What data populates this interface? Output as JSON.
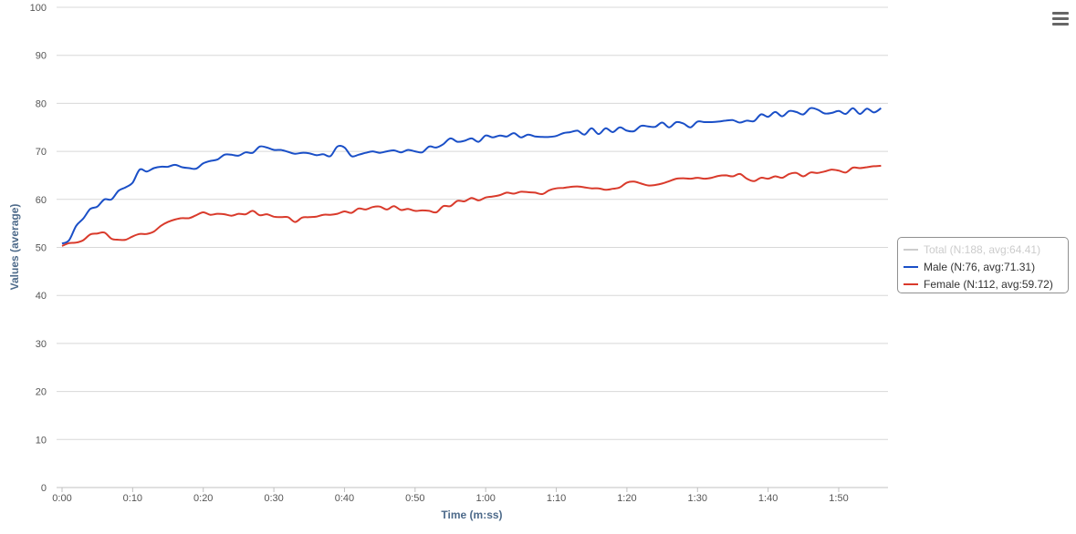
{
  "chart_data": {
    "type": "line",
    "xlabel": "Time (m:ss)",
    "ylabel": "Values (average)",
    "ylim": [
      0,
      100
    ],
    "yticks": [
      0,
      10,
      20,
      30,
      40,
      50,
      60,
      70,
      80,
      90,
      100
    ],
    "xlim": [
      0,
      118
    ],
    "xticks": [
      {
        "value": 0,
        "label": "0:00"
      },
      {
        "value": 10,
        "label": "0:10"
      },
      {
        "value": 20,
        "label": "0:20"
      },
      {
        "value": 30,
        "label": "0:30"
      },
      {
        "value": 40,
        "label": "0:40"
      },
      {
        "value": 50,
        "label": "0:50"
      },
      {
        "value": 60,
        "label": "1:00"
      },
      {
        "value": 70,
        "label": "1:10"
      },
      {
        "value": 80,
        "label": "1:20"
      },
      {
        "value": 90,
        "label": "1:30"
      },
      {
        "value": 100,
        "label": "1:40"
      },
      {
        "value": 110,
        "label": "1:50"
      }
    ],
    "grid": true,
    "legend_position": "right",
    "series": [
      {
        "name": "Total (N:188, avg:64.41)",
        "color": "#cccccc",
        "visible": false,
        "points": []
      },
      {
        "name": "Male (N:76, avg:71.31)",
        "color": "#1a4fc7",
        "visible": true,
        "points": [
          [
            0,
            50.8
          ],
          [
            1,
            51.5
          ],
          [
            2,
            54.5
          ],
          [
            3,
            56
          ],
          [
            4,
            58
          ],
          [
            5,
            58.5
          ],
          [
            6,
            60
          ],
          [
            7,
            60
          ],
          [
            8,
            61.8
          ],
          [
            9,
            62.5
          ],
          [
            10,
            63.5
          ],
          [
            11,
            66.2
          ],
          [
            12,
            65.8
          ],
          [
            13,
            66.5
          ],
          [
            14,
            66.8
          ],
          [
            15,
            66.8
          ],
          [
            16,
            67.2
          ],
          [
            17,
            66.7
          ],
          [
            18,
            66.5
          ],
          [
            19,
            66.4
          ],
          [
            20,
            67.5
          ],
          [
            21,
            68
          ],
          [
            22,
            68.3
          ],
          [
            23,
            69.3
          ],
          [
            24,
            69.3
          ],
          [
            25,
            69.1
          ],
          [
            26,
            69.8
          ],
          [
            27,
            69.7
          ],
          [
            28,
            71
          ],
          [
            29,
            70.8
          ],
          [
            30,
            70.3
          ],
          [
            31,
            70.3
          ],
          [
            32,
            69.9
          ],
          [
            33,
            69.5
          ],
          [
            34,
            69.7
          ],
          [
            35,
            69.6
          ],
          [
            36,
            69.2
          ],
          [
            37,
            69.4
          ],
          [
            38,
            69
          ],
          [
            39,
            71
          ],
          [
            40,
            70.8
          ],
          [
            41,
            69
          ],
          [
            42,
            69.3
          ],
          [
            43,
            69.7
          ],
          [
            44,
            70
          ],
          [
            45,
            69.7
          ],
          [
            46,
            70
          ],
          [
            47,
            70.2
          ],
          [
            48,
            69.8
          ],
          [
            49,
            70.3
          ],
          [
            50,
            70
          ],
          [
            51,
            69.8
          ],
          [
            52,
            71
          ],
          [
            53,
            70.8
          ],
          [
            54,
            71.5
          ],
          [
            55,
            72.7
          ],
          [
            56,
            72
          ],
          [
            57,
            72.2
          ],
          [
            58,
            72.7
          ],
          [
            59,
            72
          ],
          [
            60,
            73.3
          ],
          [
            61,
            72.9
          ],
          [
            62,
            73.3
          ],
          [
            63,
            73.1
          ],
          [
            64,
            73.8
          ],
          [
            65,
            72.9
          ],
          [
            66,
            73.5
          ],
          [
            67,
            73.1
          ],
          [
            68,
            73
          ],
          [
            69,
            73
          ],
          [
            70,
            73.2
          ],
          [
            71,
            73.8
          ],
          [
            72,
            74
          ],
          [
            73,
            74.3
          ],
          [
            74,
            73.5
          ],
          [
            75,
            74.8
          ],
          [
            76,
            73.6
          ],
          [
            77,
            74.8
          ],
          [
            78,
            74
          ],
          [
            79,
            75
          ],
          [
            80,
            74.3
          ],
          [
            81,
            74.2
          ],
          [
            82,
            75.3
          ],
          [
            83,
            75.2
          ],
          [
            84,
            75.1
          ],
          [
            85,
            76
          ],
          [
            86,
            75
          ],
          [
            87,
            76.1
          ],
          [
            88,
            75.8
          ],
          [
            89,
            75
          ],
          [
            90,
            76.2
          ],
          [
            91,
            76.1
          ],
          [
            92,
            76.1
          ],
          [
            93,
            76.2
          ],
          [
            94,
            76.4
          ],
          [
            95,
            76.5
          ],
          [
            96,
            76
          ],
          [
            97,
            76.4
          ],
          [
            98,
            76.3
          ],
          [
            99,
            77.7
          ],
          [
            100,
            77.2
          ],
          [
            101,
            78.2
          ],
          [
            102,
            77.3
          ],
          [
            103,
            78.4
          ],
          [
            104,
            78.2
          ],
          [
            105,
            77.7
          ],
          [
            106,
            79
          ],
          [
            107,
            78.7
          ],
          [
            108,
            77.9
          ],
          [
            109,
            78
          ],
          [
            110,
            78.4
          ],
          [
            111,
            77.8
          ],
          [
            112,
            79
          ],
          [
            113,
            77.8
          ],
          [
            114,
            78.9
          ],
          [
            115,
            78.1
          ],
          [
            116,
            79
          ]
        ]
      },
      {
        "name": "Female (N:112, avg:59.72)",
        "color": "#d93a2b",
        "visible": true,
        "points": [
          [
            0,
            50.3
          ],
          [
            1,
            50.9
          ],
          [
            2,
            51
          ],
          [
            3,
            51.5
          ],
          [
            4,
            52.7
          ],
          [
            5,
            52.9
          ],
          [
            6,
            53.1
          ],
          [
            7,
            51.8
          ],
          [
            8,
            51.6
          ],
          [
            9,
            51.6
          ],
          [
            10,
            52.3
          ],
          [
            11,
            52.8
          ],
          [
            12,
            52.8
          ],
          [
            13,
            53.3
          ],
          [
            14,
            54.5
          ],
          [
            15,
            55.3
          ],
          [
            16,
            55.8
          ],
          [
            17,
            56.1
          ],
          [
            18,
            56.1
          ],
          [
            19,
            56.7
          ],
          [
            20,
            57.3
          ],
          [
            21,
            56.8
          ],
          [
            22,
            57
          ],
          [
            23,
            56.9
          ],
          [
            24,
            56.6
          ],
          [
            25,
            57
          ],
          [
            26,
            56.9
          ],
          [
            27,
            57.6
          ],
          [
            28,
            56.7
          ],
          [
            29,
            56.9
          ],
          [
            30,
            56.4
          ],
          [
            31,
            56.3
          ],
          [
            32,
            56.3
          ],
          [
            33,
            55.3
          ],
          [
            34,
            56.2
          ],
          [
            35,
            56.3
          ],
          [
            36,
            56.4
          ],
          [
            37,
            56.8
          ],
          [
            38,
            56.8
          ],
          [
            39,
            57
          ],
          [
            40,
            57.5
          ],
          [
            41,
            57.2
          ],
          [
            42,
            58.1
          ],
          [
            43,
            57.9
          ],
          [
            44,
            58.4
          ],
          [
            45,
            58.5
          ],
          [
            46,
            57.9
          ],
          [
            47,
            58.6
          ],
          [
            48,
            57.8
          ],
          [
            49,
            58
          ],
          [
            50,
            57.6
          ],
          [
            51,
            57.7
          ],
          [
            52,
            57.6
          ],
          [
            53,
            57.3
          ],
          [
            54,
            58.6
          ],
          [
            55,
            58.6
          ],
          [
            56,
            59.7
          ],
          [
            57,
            59.6
          ],
          [
            58,
            60.3
          ],
          [
            59,
            59.8
          ],
          [
            60,
            60.4
          ],
          [
            61,
            60.6
          ],
          [
            62,
            60.9
          ],
          [
            63,
            61.4
          ],
          [
            64,
            61.2
          ],
          [
            65,
            61.6
          ],
          [
            66,
            61.5
          ],
          [
            67,
            61.4
          ],
          [
            68,
            61.1
          ],
          [
            69,
            61.9
          ],
          [
            70,
            62.3
          ],
          [
            71,
            62.4
          ],
          [
            72,
            62.6
          ],
          [
            73,
            62.7
          ],
          [
            74,
            62.5
          ],
          [
            75,
            62.3
          ],
          [
            76,
            62.3
          ],
          [
            77,
            62
          ],
          [
            78,
            62.2
          ],
          [
            79,
            62.5
          ],
          [
            80,
            63.5
          ],
          [
            81,
            63.7
          ],
          [
            82,
            63.3
          ],
          [
            83,
            62.9
          ],
          [
            84,
            63
          ],
          [
            85,
            63.3
          ],
          [
            86,
            63.8
          ],
          [
            87,
            64.3
          ],
          [
            88,
            64.4
          ],
          [
            89,
            64.3
          ],
          [
            90,
            64.5
          ],
          [
            91,
            64.3
          ],
          [
            92,
            64.5
          ],
          [
            93,
            64.9
          ],
          [
            94,
            65
          ],
          [
            95,
            64.8
          ],
          [
            96,
            65.3
          ],
          [
            97,
            64.3
          ],
          [
            98,
            63.8
          ],
          [
            99,
            64.5
          ],
          [
            100,
            64.3
          ],
          [
            101,
            64.8
          ],
          [
            102,
            64.5
          ],
          [
            103,
            65.3
          ],
          [
            104,
            65.5
          ],
          [
            105,
            64.8
          ],
          [
            106,
            65.6
          ],
          [
            107,
            65.5
          ],
          [
            108,
            65.8
          ],
          [
            109,
            66.2
          ],
          [
            110,
            66
          ],
          [
            111,
            65.6
          ],
          [
            112,
            66.6
          ],
          [
            113,
            66.5
          ],
          [
            114,
            66.7
          ],
          [
            115,
            66.9
          ],
          [
            116,
            67
          ]
        ]
      }
    ]
  },
  "toolbar": {
    "menu_icon": "hamburger-menu-icon"
  }
}
